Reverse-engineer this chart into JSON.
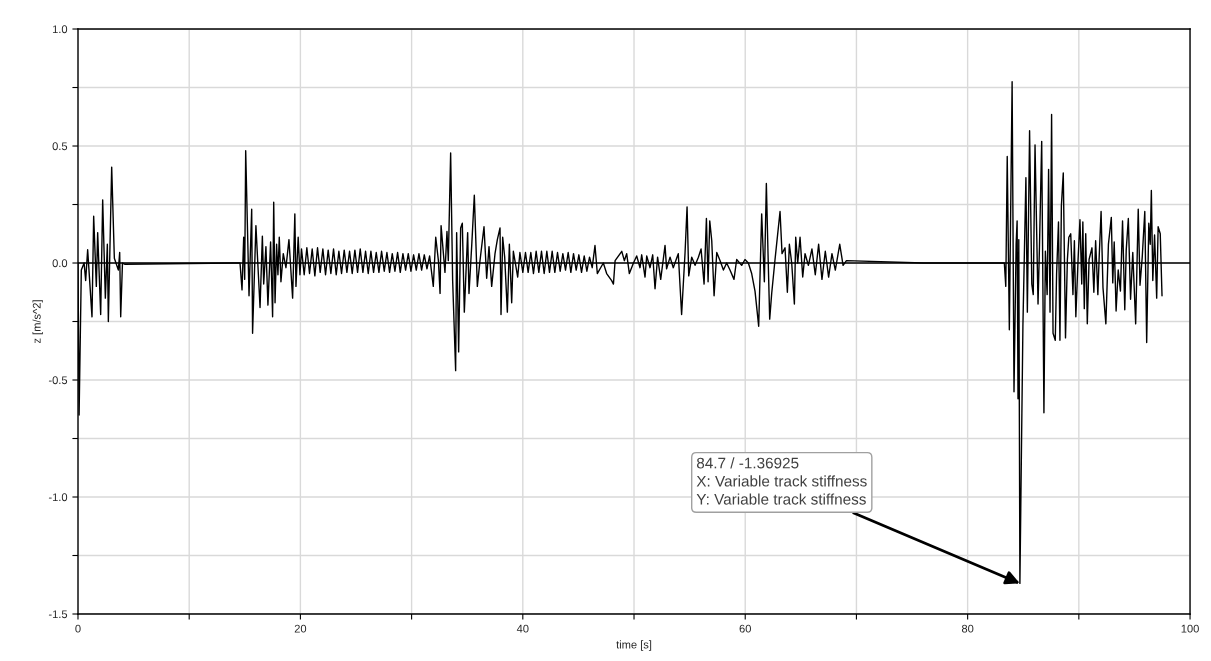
{
  "chart_data": {
    "type": "line",
    "xlabel": "time [s]",
    "ylabel": "z [m/s^2]",
    "xlim": [
      0,
      100
    ],
    "ylim": [
      -1.5,
      1.0
    ],
    "xticks": [
      0,
      {
        "value": 10,
        "label": null
      },
      20,
      {
        "value": 30,
        "label": null
      },
      40,
      {
        "value": 50,
        "label": null
      },
      60,
      {
        "value": 70,
        "label": null
      },
      80,
      {
        "value": 90,
        "label": null
      },
      100
    ],
    "yticks": [
      {
        "value": -1.5,
        "label": "-1.5"
      },
      {
        "value": -1.25,
        "label": null
      },
      {
        "value": -1.0,
        "label": "-1.0"
      },
      {
        "value": -0.75,
        "label": null
      },
      {
        "value": -0.5,
        "label": "-0.5"
      },
      {
        "value": -0.25,
        "label": null
      },
      {
        "value": 0.0,
        "label": "0.0"
      },
      {
        "value": 0.25,
        "label": null
      },
      {
        "value": 0.5,
        "label": "0.5"
      },
      {
        "value": 0.75,
        "label": null
      },
      {
        "value": 1.0,
        "label": "1.0"
      }
    ],
    "grid": true,
    "marker": "none",
    "line_style": "solid",
    "ref_lines": [
      {
        "axis": "y",
        "value": 0,
        "color": "#000000"
      }
    ],
    "annotations": [
      {
        "text": "84.7 / -1.36925\nX: Variable track stiffness\nY: Variable track stiffness",
        "x": 84.7,
        "y": -1.36925
      }
    ],
    "series": [
      {
        "color": "#000000",
        "x": [
          0.0,
          0.1,
          0.3,
          0.55,
          0.69,
          0.87,
          1.26,
          1.41,
          1.65,
          1.77,
          2.04,
          2.22,
          2.46,
          2.64,
          2.73,
          3.03,
          3.27,
          3.63,
          3.75,
          3.84,
          4.0,
          4.2,
          14.0,
          14.57,
          14.75,
          14.9,
          14.99,
          15.08,
          15.38,
          15.62,
          15.7,
          16.0,
          16.37,
          16.58,
          16.7,
          16.9,
          17.08,
          17.32,
          17.5,
          17.6,
          17.72,
          17.86,
          17.98,
          18.1,
          18.25,
          18.46,
          18.7,
          18.97,
          19.3,
          19.5,
          19.6,
          19.8,
          19.96,
          20.1,
          20.34,
          20.58,
          20.82,
          21.06,
          21.3,
          21.54,
          21.78,
          22.02,
          22.26,
          22.5,
          22.74,
          22.98,
          23.22,
          23.46,
          23.7,
          23.94,
          24.18,
          24.42,
          24.66,
          24.9,
          25.14,
          25.38,
          25.62,
          25.86,
          26.1,
          26.34,
          26.58,
          26.82,
          27.06,
          27.3,
          27.54,
          27.78,
          28.02,
          28.26,
          28.5,
          28.74,
          28.98,
          29.22,
          29.46,
          29.7,
          29.94,
          30.18,
          30.42,
          30.66,
          30.9,
          31.14,
          31.38,
          31.62,
          31.95,
          32.17,
          32.41,
          32.56,
          32.65,
          32.86,
          33.0,
          33.18,
          33.3,
          33.51,
          33.69,
          33.96,
          34.05,
          34.23,
          34.41,
          34.56,
          34.74,
          35.04,
          35.16,
          35.4,
          35.64,
          35.91,
          36.15,
          36.51,
          36.75,
          36.96,
          37.2,
          37.5,
          37.71,
          37.95,
          38.04,
          38.19,
          38.37,
          38.61,
          38.79,
          39.0,
          39.15,
          39.54,
          39.74,
          40.0,
          40.24,
          40.48,
          40.72,
          40.96,
          41.2,
          41.44,
          41.68,
          41.92,
          42.16,
          42.4,
          42.64,
          42.88,
          43.12,
          43.36,
          43.6,
          43.84,
          44.08,
          44.32,
          44.56,
          44.8,
          45.04,
          45.28,
          45.52,
          45.76,
          46.0,
          46.24,
          46.49,
          46.7,
          47.24,
          47.54,
          47.99,
          48.15,
          48.3,
          48.9,
          49.13,
          49.34,
          49.58,
          49.95,
          50.24,
          50.54,
          50.69,
          50.99,
          51.14,
          51.44,
          51.68,
          51.89,
          52.12,
          52.4,
          52.79,
          52.93,
          53.24,
          53.53,
          53.98,
          54.28,
          54.59,
          54.77,
          54.92,
          55.19,
          55.49,
          55.79,
          56.03,
          56.3,
          56.51,
          56.66,
          56.81,
          56.99,
          57.2,
          57.44,
          57.74,
          58.04,
          58.33,
          58.63,
          58.99,
          59.23,
          59.68,
          59.98,
          60.28,
          60.58,
          60.88,
          61.21,
          61.48,
          61.72,
          61.9,
          62.05,
          62.2,
          62.38,
          62.68,
          63.13,
          63.31,
          63.58,
          63.79,
          63.97,
          64.18,
          64.42,
          64.54,
          64.72,
          64.93,
          65.17,
          65.38,
          65.68,
          66.0,
          66.3,
          66.6,
          66.9,
          67.2,
          67.5,
          67.8,
          68.1,
          68.5,
          68.8,
          69.1,
          76.0,
          83.3,
          83.43,
          83.56,
          83.75,
          84.0,
          84.17,
          84.36,
          84.45,
          84.53,
          84.6,
          84.7,
          84.97,
          85.24,
          85.37,
          85.57,
          85.77,
          85.9,
          86.06,
          86.33,
          86.46,
          86.66,
          86.86,
          86.99,
          87.15,
          87.28,
          87.41,
          87.55,
          87.68,
          87.88,
          88.0,
          88.17,
          88.3,
          88.43,
          88.6,
          88.8,
          88.97,
          89.1,
          89.27,
          89.47,
          89.6,
          89.73,
          89.93,
          90.1,
          90.26,
          90.36,
          90.49,
          90.62,
          90.76,
          90.92,
          91.18,
          91.35,
          91.51,
          91.71,
          91.84,
          92.0,
          92.17,
          92.43,
          92.66,
          92.92,
          93.05,
          93.18,
          93.35,
          93.54,
          93.74,
          93.93,
          94.13,
          94.26,
          94.45,
          94.65,
          94.85,
          95.11,
          95.34,
          95.5,
          95.7,
          95.93,
          96.1,
          96.29,
          96.42,
          96.52,
          96.65,
          96.81,
          97.0,
          97.13,
          97.32,
          97.48
        ],
        "values": [
          0.0,
          -0.65,
          -0.03,
          0.0,
          -0.075,
          0.057,
          -0.23,
          0.2,
          -0.1,
          0.13,
          -0.22,
          0.27,
          -0.15,
          0.08,
          -0.25,
          0.41,
          0.02,
          -0.03,
          0.045,
          -0.23,
          0.0,
          -0.005,
          0.0,
          0.0,
          -0.115,
          0.11,
          -0.07,
          0.48,
          -0.14,
          0.23,
          -0.3,
          0.16,
          -0.19,
          0.115,
          -0.09,
          0.07,
          -0.18,
          0.09,
          -0.23,
          0.26,
          -0.17,
          0.08,
          -0.05,
          0.11,
          -0.08,
          0.04,
          -0.02,
          0.1,
          -0.15,
          0.21,
          -0.1,
          0.11,
          -0.05,
          0.06,
          -0.05,
          0.065,
          -0.045,
          0.06,
          -0.055,
          0.065,
          -0.04,
          0.06,
          -0.05,
          0.055,
          -0.045,
          0.06,
          -0.05,
          0.05,
          -0.045,
          0.055,
          -0.04,
          0.05,
          -0.045,
          0.055,
          -0.04,
          0.06,
          -0.04,
          0.05,
          -0.045,
          0.05,
          -0.04,
          0.045,
          -0.04,
          0.05,
          -0.035,
          0.045,
          -0.04,
          0.04,
          -0.035,
          0.045,
          -0.04,
          0.04,
          -0.03,
          0.04,
          -0.035,
          0.035,
          -0.03,
          0.04,
          -0.03,
          0.035,
          -0.025,
          0.03,
          -0.1,
          0.11,
          0.01,
          -0.13,
          0.16,
          0.04,
          -0.04,
          0.135,
          0.01,
          0.47,
          -0.075,
          -0.46,
          0.13,
          -0.38,
          0.15,
          0.17,
          -0.21,
          0.13,
          -0.13,
          0.07,
          0.29,
          -0.1,
          0.01,
          0.155,
          -0.065,
          0.07,
          -0.1,
          0.04,
          0.1,
          0.15,
          -0.22,
          0.11,
          0.025,
          -0.21,
          0.08,
          -0.17,
          0.05,
          -0.06,
          0.045,
          -0.04,
          0.045,
          -0.04,
          0.045,
          -0.045,
          0.05,
          -0.04,
          0.05,
          -0.045,
          0.05,
          -0.04,
          0.05,
          -0.04,
          0.045,
          -0.035,
          0.04,
          -0.03,
          0.045,
          -0.04,
          0.04,
          -0.03,
          0.035,
          -0.04,
          0.03,
          -0.035,
          0.025,
          -0.02,
          0.075,
          -0.045,
          0.0,
          -0.045,
          -0.075,
          -0.09,
          0.01,
          0.05,
          0.01,
          0.04,
          -0.045,
          0.0,
          0.03,
          -0.02,
          0.035,
          -0.06,
          0.03,
          -0.02,
          0.035,
          -0.11,
          0.025,
          -0.07,
          0.075,
          -0.025,
          0.025,
          -0.02,
          0.04,
          -0.22,
          0.045,
          0.24,
          -0.055,
          0.025,
          -0.01,
          0.025,
          0.06,
          -0.09,
          0.19,
          -0.08,
          0.18,
          0.095,
          -0.14,
          0.045,
          0.01,
          -0.03,
          0.0,
          -0.03,
          -0.07,
          0.015,
          -0.01,
          0.015,
          0.0,
          -0.045,
          -0.12,
          -0.27,
          0.21,
          -0.08,
          0.34,
          0.04,
          -0.24,
          -0.13,
          0.015,
          0.22,
          0.04,
          0.065,
          -0.125,
          0.08,
          0.0,
          -0.175,
          0.11,
          0.0,
          0.11,
          -0.06,
          0.04,
          -0.01,
          0.06,
          -0.05,
          0.08,
          -0.07,
          0.05,
          -0.06,
          0.04,
          -0.03,
          0.08,
          -0.01,
          0.01,
          0.0,
          0.0,
          -0.1,
          0.455,
          -0.285,
          0.775,
          -0.55,
          0.08,
          0.18,
          -0.58,
          0.1,
          -1.36925,
          -0.27,
          0.365,
          -0.21,
          0.565,
          -0.09,
          -0.135,
          0.505,
          -0.175,
          0.07,
          0.52,
          -0.64,
          0.05,
          -0.135,
          0.4,
          -0.21,
          0.635,
          -0.3,
          -0.33,
          -0.045,
          0.175,
          -0.33,
          0.245,
          0.385,
          -0.32,
          0.015,
          0.11,
          0.125,
          -0.135,
          0.095,
          -0.23,
          0.015,
          0.185,
          -0.09,
          0.175,
          -0.195,
          0.125,
          -0.26,
          0.015,
          0.065,
          -0.125,
          0.095,
          -0.135,
          0.04,
          0.22,
          -0.105,
          -0.26,
          0.08,
          0.195,
          -0.085,
          0.09,
          -0.205,
          -0.03,
          -0.12,
          0.18,
          -0.2,
          0.055,
          0.19,
          -0.155,
          0.045,
          -0.26,
          0.23,
          -0.095,
          0.025,
          0.22,
          -0.34,
          0.17,
          0.08,
          0.31,
          -0.075,
          0.12,
          -0.15,
          0.155,
          0.125,
          -0.14
        ]
      }
    ]
  }
}
